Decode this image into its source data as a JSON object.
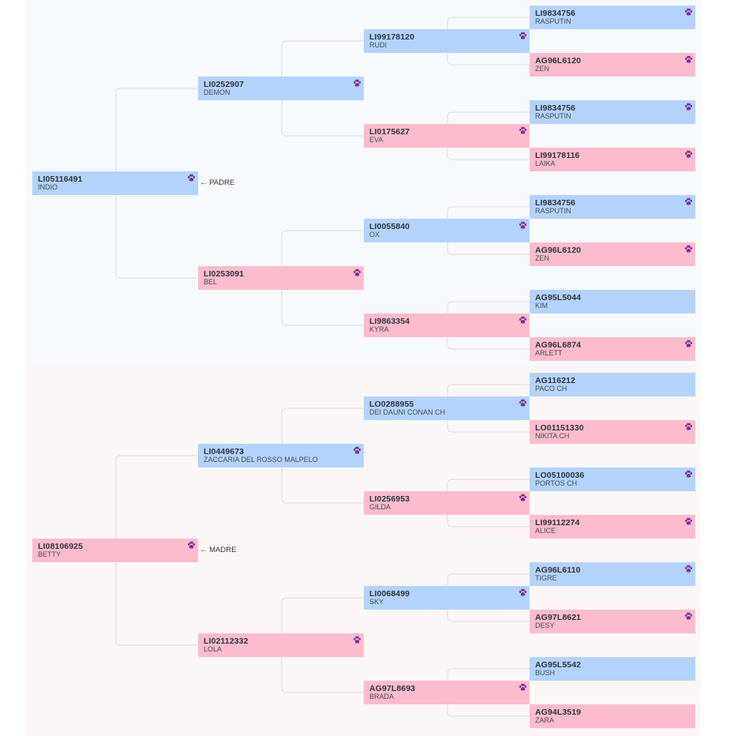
{
  "labels": {
    "padre": "PADRE",
    "madre": "MADRE"
  },
  "icon": "paw-icon",
  "colors": {
    "male": "#b3d3fc",
    "female": "#fdbccb",
    "paw": "#7b2d9b",
    "line": "#d9dbe0"
  },
  "pedigree": [
    {
      "code": "LI05116491",
      "name": "INDIO",
      "sex": "m"
    },
    {
      "code": "LI0252907",
      "name": "DEMON",
      "sex": "m"
    },
    {
      "code": "LI0253091",
      "name": "BEL",
      "sex": "f"
    },
    {
      "code": "LI99178120",
      "name": "RUDI",
      "sex": "m"
    },
    {
      "code": "LI0175627",
      "name": "EVA",
      "sex": "f"
    },
    {
      "code": "LI0055840",
      "name": "OX",
      "sex": "m"
    },
    {
      "code": "LI9863354",
      "name": "KYRA",
      "sex": "f"
    },
    {
      "code": "LI9834756",
      "name": "RASPUTIN",
      "sex": "m"
    },
    {
      "code": "AG96L6120",
      "name": "ZEN",
      "sex": "f"
    },
    {
      "code": "LI9834756",
      "name": "RASPUTIN",
      "sex": "m"
    },
    {
      "code": "LI99178116",
      "name": "LAIKA",
      "sex": "f"
    },
    {
      "code": "LI9834756",
      "name": "RASPUTIN",
      "sex": "m"
    },
    {
      "code": "AG96L6120",
      "name": "ZEN",
      "sex": "f"
    },
    {
      "code": "AG95L5044",
      "name": "KIM",
      "sex": "m"
    },
    {
      "code": "AG96L6874",
      "name": "ARLETT",
      "sex": "f"
    },
    {
      "code": "LI08106925",
      "name": "BETTY",
      "sex": "f"
    },
    {
      "code": "LI0449673",
      "name": "ZACCARIA DEL ROSSO MALPELO",
      "sex": "m"
    },
    {
      "code": "LI02112332",
      "name": "LOLA",
      "sex": "f"
    },
    {
      "code": "LO0288955",
      "name": "DEI DAUNI CONAN CH",
      "sex": "m"
    },
    {
      "code": "LI0256953",
      "name": "GILDA",
      "sex": "f"
    },
    {
      "code": "LI0068499",
      "name": "SKY",
      "sex": "m"
    },
    {
      "code": "AG97L8693",
      "name": "BRADA",
      "sex": "f"
    },
    {
      "code": "AG116212",
      "name": "PACO CH",
      "sex": "m"
    },
    {
      "code": "LO01151330",
      "name": "NIKITA CH",
      "sex": "f"
    },
    {
      "code": "LO05100036",
      "name": "PORTOS CH",
      "sex": "m"
    },
    {
      "code": "LI99112274",
      "name": "ALICE",
      "sex": "f"
    },
    {
      "code": "AG96L6110",
      "name": "TIGRE",
      "sex": "m"
    },
    {
      "code": "AG97L8621",
      "name": "DESY",
      "sex": "f"
    },
    {
      "code": "AG95L5542",
      "name": "BUSH",
      "sex": "m"
    },
    {
      "code": "AG94L3519",
      "name": "ZARA",
      "sex": "f"
    }
  ]
}
